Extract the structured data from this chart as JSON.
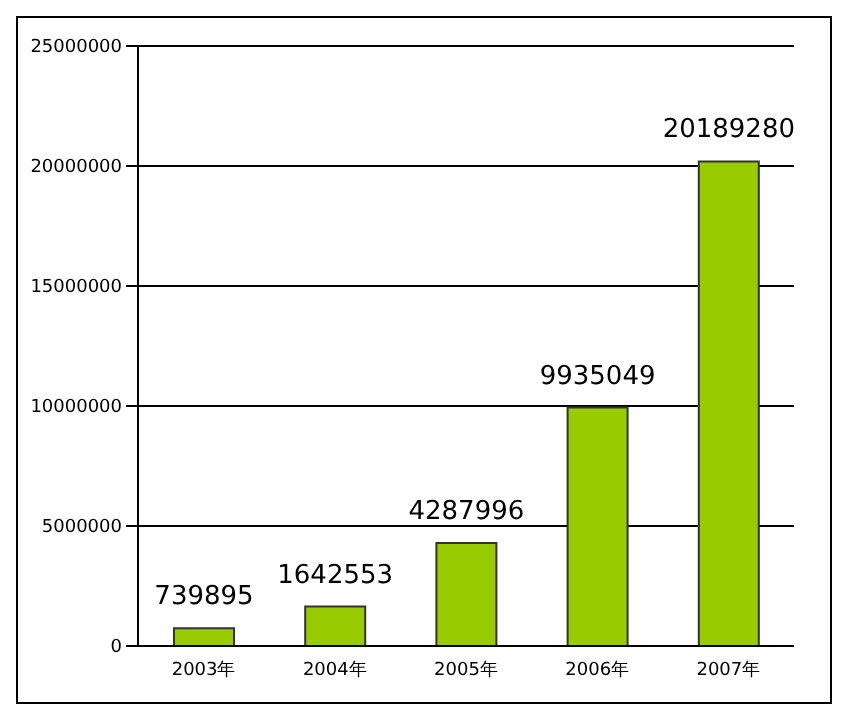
{
  "chart_data": {
    "type": "bar",
    "categories": [
      "2003年",
      "2004年",
      "2005年",
      "2006年",
      "2007年"
    ],
    "values": [
      739895,
      1642553,
      4287996,
      9935049,
      20189280
    ],
    "color": "#99cc00",
    "ylim": [
      0,
      25000000
    ],
    "yticks": [
      0,
      5000000,
      10000000,
      15000000,
      20000000,
      25000000
    ],
    "grid": "y",
    "data_labels": true
  }
}
